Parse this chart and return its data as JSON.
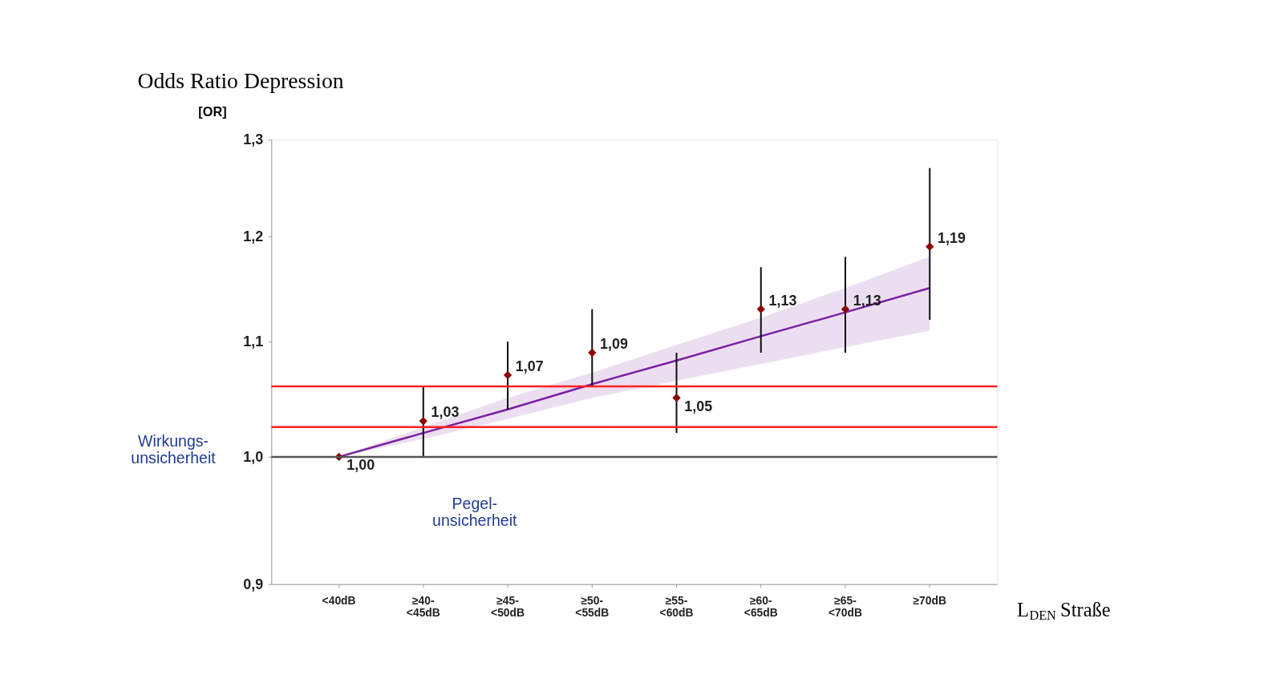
{
  "chart_data": {
    "type": "scatter",
    "title": "Odds Ratio Depression",
    "ylabel": "[OR]",
    "xlabel": "L$_{DEN}$ Straße",
    "categories": [
      "<40dB",
      "≥40-<45dB",
      "≥45-<50dB",
      "≥50-<55dB",
      "≥55-<60dB",
      "≥60-<65dB",
      "≥65-<70dB",
      "≥70dB"
    ],
    "series": [
      {
        "type": "line",
        "color": "#7b1fa2",
        "values": [
          1.0,
          1.02,
          1.04,
          1.062,
          1.083,
          1.105,
          1.127,
          1.15
        ],
        "lower": [
          1.0,
          1.015,
          1.032,
          1.05,
          1.065,
          1.08,
          1.095,
          1.11
        ],
        "upper": [
          1.0,
          1.025,
          1.05,
          1.072,
          1.097,
          1.122,
          1.15,
          1.18
        ]
      },
      {
        "marker": "diamond",
        "color": "#8b0000",
        "values": [
          1.0,
          1.03,
          1.07,
          1.09,
          1.05,
          1.13,
          1.13,
          1.19
        ],
        "errors": [
          null,
          [
            1.0,
            1.06
          ],
          [
            1.04,
            1.1
          ],
          [
            1.06,
            1.13
          ],
          [
            1.02,
            1.09
          ],
          [
            1.09,
            1.17
          ],
          [
            1.09,
            1.18
          ],
          [
            1.12,
            1.27
          ]
        ],
        "value_labels": [
          "1,00",
          "1,03",
          "1,07",
          "1,09",
          "1,05",
          "1,13",
          "1,13",
          "1,19"
        ]
      }
    ],
    "ylim": [
      0.9,
      1.3
    ],
    "yticks": [
      {
        "value": 0.9,
        "label": "0,9"
      },
      {
        "value": 1.0,
        "label": "1,0"
      },
      {
        "value": 1.1,
        "label": "1,1"
      },
      {
        "value": 1.2,
        "label": "1,2"
      },
      {
        "value": 1.3,
        "label": "1,3"
      }
    ],
    "log": true,
    "grid": false,
    "ref_lines": [
      {
        "axis": "y",
        "value": 1.0,
        "color": "#555555"
      },
      {
        "axis": "y",
        "value": 1.06,
        "color": "#ff2020"
      },
      {
        "axis": "y",
        "value": 1.025,
        "color": "#ff2020"
      }
    ],
    "annotations": [
      "Wirkungs-\nunsicherheit",
      "Pegel-\nunsicherheit"
    ]
  }
}
